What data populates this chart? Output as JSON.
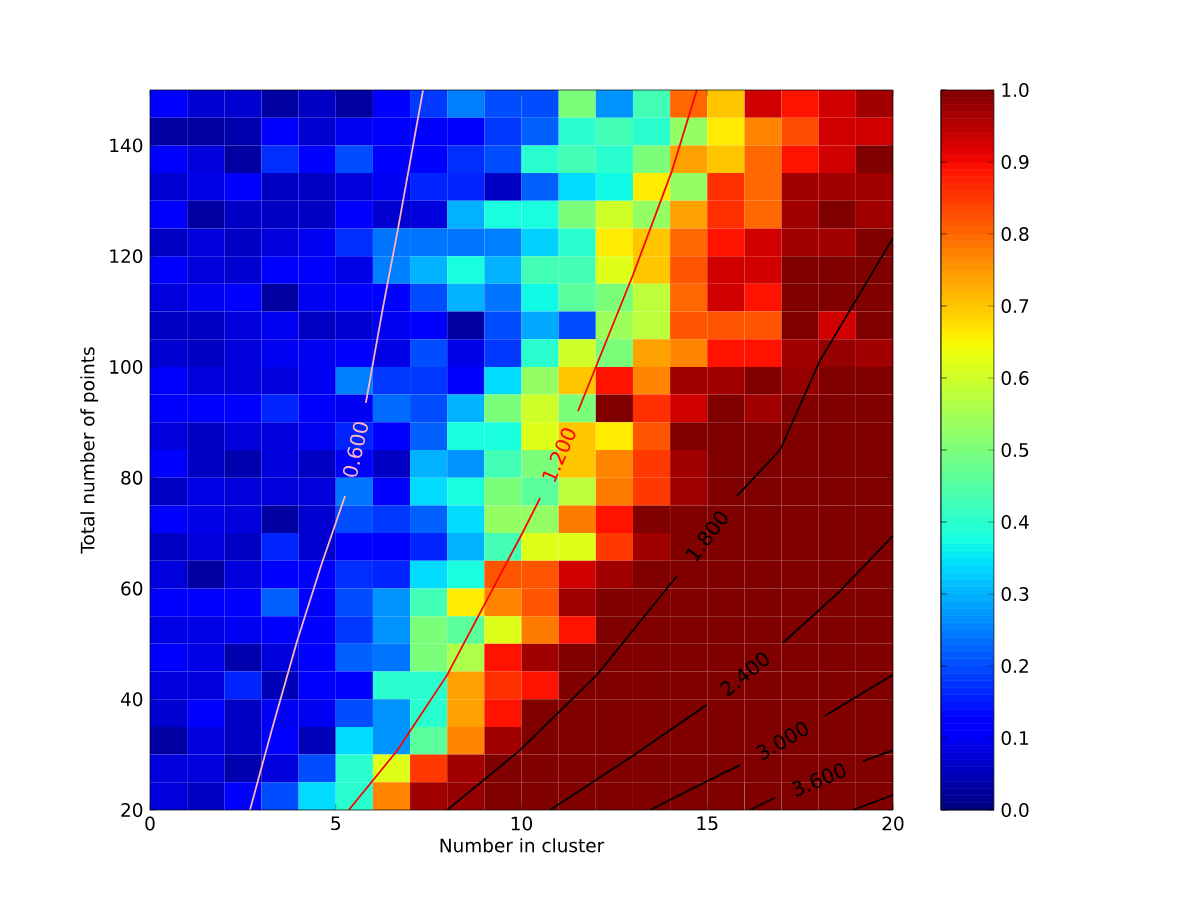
{
  "chart_data": {
    "type": "heatmap",
    "xlabel": "Number in cluster",
    "ylabel": "Total number of points",
    "xlim": [
      0,
      20
    ],
    "ylim": [
      20,
      150
    ],
    "xticks": [
      0,
      5,
      10,
      15,
      20
    ],
    "yticks": [
      20,
      40,
      60,
      80,
      100,
      120,
      140
    ],
    "clim": [
      0,
      1
    ],
    "cticks": [
      {
        "value": 0,
        "label": "0.0"
      },
      0.1,
      0.2,
      0.3,
      0.4,
      0.5,
      0.6,
      0.7,
      0.8,
      0.9,
      {
        "value": 1,
        "label": "1.0"
      }
    ],
    "cells": [
      [
        0.12,
        0.07,
        0.07,
        0.03,
        0.06,
        0.03,
        0.11,
        0.18,
        0.25,
        0.2,
        0.2,
        0.5,
        0.27,
        0.43,
        0.8,
        0.7,
        0.93,
        0.89,
        0.93,
        0.97
      ],
      [
        0.03,
        0.03,
        0.04,
        0.12,
        0.07,
        0.1,
        0.11,
        0.11,
        0.12,
        0.18,
        0.22,
        0.4,
        0.43,
        0.4,
        0.53,
        0.66,
        0.77,
        0.83,
        0.93,
        0.93
      ],
      [
        0.12,
        0.08,
        0.03,
        0.17,
        0.11,
        0.2,
        0.11,
        0.11,
        0.17,
        0.2,
        0.4,
        0.43,
        0.4,
        0.5,
        0.74,
        0.7,
        0.8,
        0.89,
        0.93,
        1.0
      ],
      [
        0.07,
        0.09,
        0.12,
        0.06,
        0.06,
        0.08,
        0.1,
        0.16,
        0.16,
        0.06,
        0.22,
        0.34,
        0.37,
        0.66,
        0.53,
        0.86,
        0.8,
        0.97,
        0.97,
        0.97
      ],
      [
        0.11,
        0.03,
        0.06,
        0.06,
        0.06,
        0.12,
        0.07,
        0.08,
        0.3,
        0.38,
        0.38,
        0.5,
        0.6,
        0.53,
        0.74,
        0.86,
        0.8,
        0.97,
        1.0,
        0.97
      ],
      [
        0.06,
        0.08,
        0.06,
        0.08,
        0.1,
        0.17,
        0.24,
        0.24,
        0.24,
        0.25,
        0.33,
        0.4,
        0.66,
        0.7,
        0.8,
        0.89,
        0.93,
        0.97,
        0.97,
        1.0
      ],
      [
        0.11,
        0.08,
        0.07,
        0.12,
        0.11,
        0.09,
        0.25,
        0.3,
        0.38,
        0.3,
        0.43,
        0.43,
        0.62,
        0.7,
        0.82,
        0.93,
        0.93,
        1.0,
        1.0,
        1.0
      ],
      [
        0.08,
        0.1,
        0.12,
        0.03,
        0.1,
        0.11,
        0.11,
        0.2,
        0.3,
        0.24,
        0.37,
        0.46,
        0.5,
        0.58,
        0.8,
        0.93,
        0.89,
        1.0,
        1.0,
        1.0
      ],
      [
        0.06,
        0.06,
        0.08,
        0.1,
        0.06,
        0.07,
        0.1,
        0.11,
        0.03,
        0.2,
        0.29,
        0.2,
        0.54,
        0.58,
        0.82,
        0.82,
        0.82,
        1.0,
        0.93,
        1.0
      ],
      [
        0.07,
        0.06,
        0.08,
        0.1,
        0.1,
        0.11,
        0.09,
        0.2,
        0.09,
        0.18,
        0.4,
        0.6,
        0.5,
        0.74,
        0.77,
        0.89,
        0.89,
        0.97,
        0.98,
        0.97
      ],
      [
        0.11,
        0.08,
        0.08,
        0.08,
        0.1,
        0.25,
        0.18,
        0.18,
        0.11,
        0.34,
        0.53,
        0.7,
        0.89,
        0.77,
        0.97,
        0.97,
        1.0,
        0.98,
        1.0,
        1.0
      ],
      [
        0.12,
        0.11,
        0.12,
        0.16,
        0.11,
        0.1,
        0.23,
        0.2,
        0.3,
        0.5,
        0.6,
        0.5,
        1.0,
        0.86,
        0.93,
        1.0,
        0.97,
        1.0,
        1.0,
        1.0
      ],
      [
        0.08,
        0.06,
        0.08,
        0.08,
        0.1,
        0.16,
        0.11,
        0.22,
        0.38,
        0.38,
        0.62,
        0.7,
        0.66,
        0.82,
        1.0,
        1.0,
        1.0,
        1.0,
        1.0,
        1.0
      ],
      [
        0.12,
        0.06,
        0.04,
        0.08,
        0.06,
        0.12,
        0.06,
        0.3,
        0.27,
        0.43,
        0.5,
        0.7,
        0.77,
        0.85,
        0.97,
        1.0,
        1.0,
        1.0,
        1.0,
        1.0
      ],
      [
        0.06,
        0.09,
        0.08,
        0.08,
        0.08,
        0.24,
        0.11,
        0.34,
        0.38,
        0.5,
        0.46,
        0.58,
        0.78,
        0.85,
        0.97,
        1.0,
        1.0,
        1.0,
        1.0,
        1.0
      ],
      [
        0.12,
        0.09,
        0.08,
        0.03,
        0.07,
        0.2,
        0.18,
        0.22,
        0.34,
        0.53,
        0.53,
        0.78,
        0.89,
        1.0,
        1.0,
        1.0,
        1.0,
        1.0,
        1.0,
        1.0
      ],
      [
        0.06,
        0.08,
        0.06,
        0.16,
        0.07,
        0.11,
        0.11,
        0.16,
        0.3,
        0.43,
        0.62,
        0.62,
        0.85,
        0.97,
        1.0,
        1.0,
        1.0,
        1.0,
        1.0,
        1.0
      ],
      [
        0.08,
        0.03,
        0.08,
        0.11,
        0.11,
        0.17,
        0.16,
        0.34,
        0.38,
        0.82,
        0.82,
        0.93,
        0.97,
        1.0,
        1.0,
        1.0,
        1.0,
        1.0,
        1.0,
        1.0
      ],
      [
        0.12,
        0.12,
        0.11,
        0.22,
        0.11,
        0.2,
        0.27,
        0.43,
        0.66,
        0.77,
        0.82,
        0.97,
        1.0,
        1.0,
        1.0,
        1.0,
        1.0,
        1.0,
        1.0,
        1.0
      ],
      [
        0.09,
        0.09,
        0.1,
        0.11,
        0.11,
        0.18,
        0.27,
        0.5,
        0.46,
        0.62,
        0.78,
        0.89,
        1.0,
        1.0,
        1.0,
        1.0,
        1.0,
        1.0,
        1.0,
        1.0
      ],
      [
        0.11,
        0.09,
        0.04,
        0.08,
        0.11,
        0.22,
        0.24,
        0.5,
        0.56,
        0.89,
        0.97,
        1.0,
        1.0,
        1.0,
        1.0,
        1.0,
        1.0,
        1.0,
        1.0,
        1.0
      ],
      [
        0.08,
        0.08,
        0.16,
        0.05,
        0.11,
        0.11,
        0.4,
        0.4,
        0.74,
        0.86,
        0.89,
        1.0,
        1.0,
        1.0,
        1.0,
        1.0,
        1.0,
        1.0,
        1.0,
        1.0
      ],
      [
        0.07,
        0.11,
        0.06,
        0.1,
        0.1,
        0.2,
        0.27,
        0.4,
        0.74,
        0.89,
        1.0,
        1.0,
        1.0,
        1.0,
        1.0,
        1.0,
        1.0,
        1.0,
        1.0,
        1.0
      ],
      [
        0.03,
        0.08,
        0.06,
        0.11,
        0.05,
        0.34,
        0.27,
        0.46,
        0.77,
        0.97,
        1.0,
        1.0,
        1.0,
        1.0,
        1.0,
        1.0,
        1.0,
        1.0,
        1.0,
        1.0
      ],
      [
        0.08,
        0.08,
        0.04,
        0.08,
        0.2,
        0.4,
        0.62,
        0.85,
        0.97,
        1.0,
        1.0,
        1.0,
        1.0,
        1.0,
        1.0,
        1.0,
        1.0,
        1.0,
        1.0,
        1.0
      ],
      [
        0.08,
        0.06,
        0.12,
        0.2,
        0.34,
        0.4,
        0.77,
        0.97,
        0.98,
        1.0,
        1.0,
        1.0,
        1.0,
        1.0,
        1.0,
        1.0,
        1.0,
        1.0,
        1.0,
        1.0
      ]
    ],
    "series": [
      {
        "type": "line",
        "name": "0.600",
        "color": "#ffb6c1",
        "x": [
          2.69,
          3.3,
          3.96,
          4.6,
          5.25,
          5.5,
          5.81,
          6.25,
          6.68,
          7.35
        ],
        "values": [
          20,
          35,
          50.5,
          64,
          76.7,
          null,
          93.5,
          110,
          125.1,
          150
        ]
      },
      {
        "type": "line",
        "name": "1.200",
        "color": "#ff0000",
        "x": [
          5.35,
          6.65,
          8.0,
          10.0,
          10.5,
          11.0,
          11.52,
          13.0,
          14.05,
          14.72
        ],
        "values": [
          20,
          30.7,
          44.4,
          69.7,
          76.3,
          null,
          92,
          116.6,
          135.4,
          150
        ]
      },
      {
        "type": "line",
        "name": "1.800",
        "color": "#000000",
        "x": [
          8.0,
          9.96,
          12.03,
          14.19,
          15.0,
          15.8,
          16.96,
          18.03,
          20.0
        ],
        "values": [
          20,
          30.8,
          44.4,
          62.3,
          null,
          76.7,
          85,
          101.1,
          123.3
        ]
      },
      {
        "type": "line",
        "name": "2.400",
        "color": "#000000",
        "x": [
          10.77,
          13.0,
          14.99,
          16.0,
          17.04,
          18.57,
          20.0
        ],
        "values": [
          20,
          29.8,
          39,
          null,
          50.2,
          59.5,
          69.5
        ]
      },
      {
        "type": "line",
        "name": "3.000",
        "color": "#000000",
        "x": [
          13.46,
          14.99,
          15.88,
          17.0,
          18.17,
          20.0
        ],
        "values": [
          20,
          25.2,
          28.1,
          null,
          37,
          44.4
        ]
      },
      {
        "type": "line",
        "name": "3.600",
        "color": "#000000",
        "x": [
          16.15,
          16.82,
          18.0,
          19.19,
          20.0
        ],
        "values": [
          20,
          22.2,
          null,
          28.8,
          30.8
        ]
      },
      {
        "type": "line",
        "color": "#000000",
        "x": [
          18.92,
          20.0
        ],
        "values": [
          20,
          22.7
        ]
      }
    ]
  }
}
